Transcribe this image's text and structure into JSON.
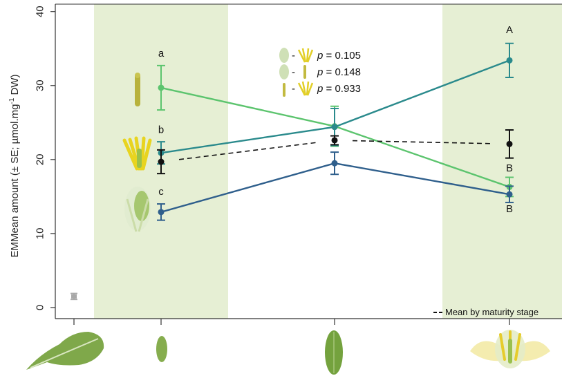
{
  "chart_data": {
    "type": "line",
    "ylabel_main": "EMMean amount (± SE; µmol.mg",
    "ylabel_sup": "-1",
    "ylabel_end": " DW)",
    "ylim": [
      -1.5,
      41
    ],
    "yticks": [
      0,
      10,
      20,
      30,
      40
    ],
    "x_positions": [
      0,
      1,
      2,
      3
    ],
    "shaded_x": [
      1,
      3
    ],
    "legend": {
      "label": "Mean by maturity stage",
      "placement": "bottom-right"
    },
    "leaf_reference": {
      "x": 0,
      "y": 1.5,
      "se": 0.4,
      "color": "#a8a8a8"
    },
    "series": [
      {
        "color": "#5cc46e",
        "x": [
          1,
          2,
          3
        ],
        "y": [
          29.7,
          24.5,
          16.3
        ],
        "se": [
          3.0,
          2.7,
          1.3
        ],
        "dashed": false
      },
      {
        "color": "#2a8a8c",
        "x": [
          1,
          2,
          3
        ],
        "y": [
          20.9,
          24.4,
          33.4
        ],
        "se": [
          1.5,
          2.5,
          2.3
        ],
        "dashed": false
      },
      {
        "color": "#2f5f8c",
        "x": [
          1,
          2,
          3
        ],
        "y": [
          12.9,
          19.5,
          15.3
        ],
        "se": [
          1.1,
          1.5,
          1.1
        ],
        "dashed": false
      },
      {
        "color": "#111111",
        "x": [
          1,
          2,
          3
        ],
        "y": [
          19.7,
          22.6,
          22.1
        ],
        "se": [
          1.6,
          0.6,
          1.9
        ],
        "dashed": true
      }
    ],
    "annotations": [
      {
        "text": "a",
        "x": 1,
        "y": 33.9
      },
      {
        "text": "b",
        "x": 1,
        "y": 23.6
      },
      {
        "text": "c",
        "x": 1,
        "y": 15.2
      },
      {
        "text": "A",
        "x": 3,
        "y": 37.1
      },
      {
        "text": "B",
        "x": 3,
        "y": 18.4
      },
      {
        "text": "B",
        "x": 3,
        "y": 12.9
      }
    ],
    "pvalues": [
      {
        "p": "p",
        "text": " = 0.105"
      },
      {
        "p": "p",
        "text": " = 0.148"
      },
      {
        "p": "p",
        "text": " = 0.933"
      }
    ]
  }
}
